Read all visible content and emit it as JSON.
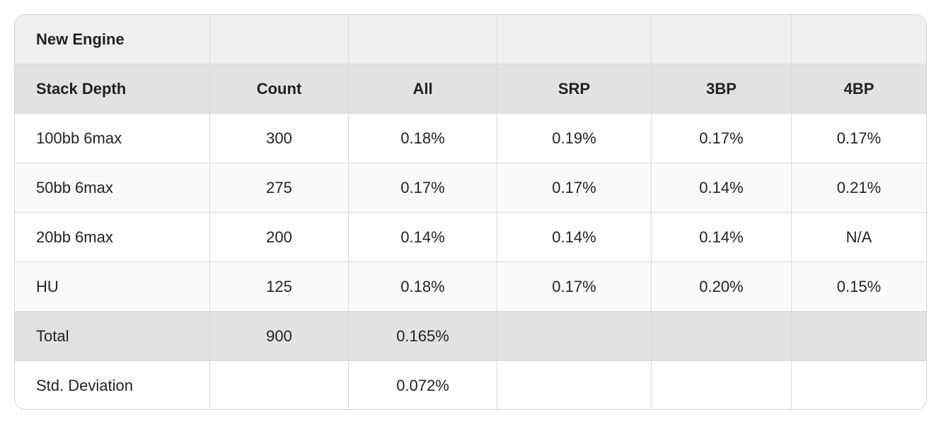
{
  "table": {
    "title": "New Engine",
    "header": [
      "Stack Depth",
      "Count",
      "All",
      "SRP",
      "3BP",
      "4BP"
    ],
    "rows": [
      [
        "100bb 6max",
        300,
        "0.18%",
        "0.19%",
        "0.17%",
        "0.17%"
      ],
      [
        "50bb 6max",
        275,
        "0.17%",
        "0.17%",
        "0.14%",
        "0.21%"
      ],
      [
        "20bb 6max",
        200,
        "0.14%",
        "0.14%",
        "0.14%",
        "N/A"
      ],
      [
        "HU",
        125,
        "0.18%",
        "0.17%",
        "0.20%",
        "0.15%"
      ]
    ],
    "total": [
      "Total",
      900,
      "0.165%",
      null,
      null,
      null
    ],
    "std_deviation": [
      "Std. Deviation",
      null,
      "0.072%",
      null,
      null,
      null
    ]
  }
}
